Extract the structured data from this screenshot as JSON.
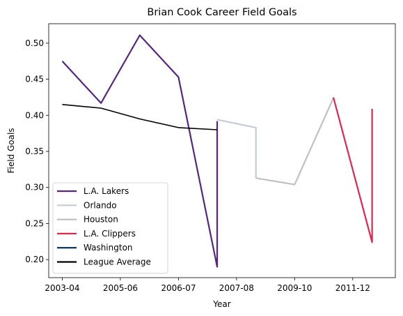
{
  "chart_data": {
    "type": "line",
    "title": "Brian Cook Career Field Goals",
    "xlabel": "Year",
    "ylabel": "Field Goals",
    "xlim": [
      -0.35,
      8.6
    ],
    "ylim": [
      0.175,
      0.527
    ],
    "x_ticks": [
      {
        "pos": 0,
        "label": "2003-04"
      },
      {
        "pos": 1.5,
        "label": "2005-06"
      },
      {
        "pos": 3,
        "label": "2006-07"
      },
      {
        "pos": 4.5,
        "label": "2007-08"
      },
      {
        "pos": 6,
        "label": "2009-10"
      },
      {
        "pos": 7.5,
        "label": "2011-12"
      }
    ],
    "y_ticks": [
      {
        "value": 0.2,
        "label": "0.20"
      },
      {
        "value": 0.25,
        "label": "0.25"
      },
      {
        "value": 0.3,
        "label": "0.30"
      },
      {
        "value": 0.35,
        "label": "0.35"
      },
      {
        "value": 0.4,
        "label": "0.40"
      },
      {
        "value": 0.45,
        "label": "0.45"
      },
      {
        "value": 0.5,
        "label": "0.50"
      }
    ],
    "series": [
      {
        "name": "L.A. Lakers",
        "color": "#552583",
        "x": [
          0,
          1,
          2,
          3,
          4,
          4
        ],
        "y": [
          0.475,
          0.417,
          0.511,
          0.453,
          0.19,
          0.392
        ]
      },
      {
        "name": "Orlando",
        "color": "#C4CED4",
        "x": [
          4,
          5,
          5
        ],
        "y": [
          0.394,
          0.383,
          0.313
        ]
      },
      {
        "name": "Houston",
        "color": "#BEC0C2",
        "x": [
          5,
          6,
          7
        ],
        "y": [
          0.313,
          0.304,
          0.424
        ]
      },
      {
        "name": "L.A. Clippers",
        "color": "#E2254D",
        "x": [
          7,
          8,
          8
        ],
        "y": [
          0.425,
          0.224,
          0.409
        ]
      },
      {
        "name": "Washington",
        "color": "#002B5C",
        "x": [],
        "y": []
      },
      {
        "name": "League Average",
        "color": "#000000",
        "x": [
          0,
          1,
          2,
          3,
          4
        ],
        "y": [
          0.415,
          0.41,
          0.395,
          0.383,
          0.38
        ]
      }
    ],
    "legend_position": "lower-left"
  }
}
